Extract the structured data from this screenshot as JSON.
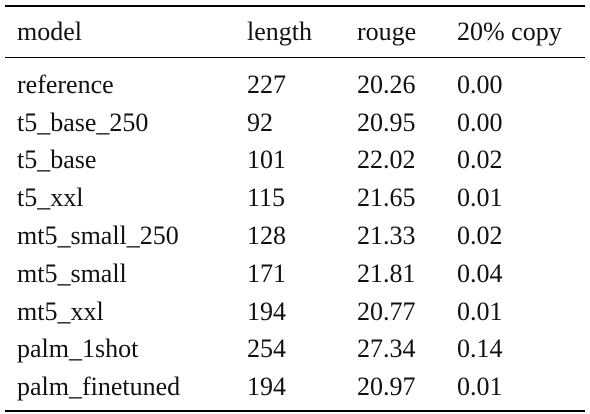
{
  "table": {
    "columns": [
      "model",
      "length",
      "rouge",
      "20% copy"
    ],
    "rows": [
      [
        "reference",
        "227",
        "20.26",
        "0.00"
      ],
      [
        "t5_base_250",
        "92",
        "20.95",
        "0.00"
      ],
      [
        "t5_base",
        "101",
        "22.02",
        "0.02"
      ],
      [
        "t5_xxl",
        "115",
        "21.65",
        "0.01"
      ],
      [
        "mt5_small_250",
        "128",
        "21.33",
        "0.02"
      ],
      [
        "mt5_small",
        "171",
        "21.81",
        "0.04"
      ],
      [
        "mt5_xxl",
        "194",
        "20.77",
        "0.01"
      ],
      [
        "palm_1shot",
        "254",
        "27.34",
        "0.14"
      ],
      [
        "palm_finetuned",
        "194",
        "20.97",
        "0.01"
      ]
    ]
  }
}
